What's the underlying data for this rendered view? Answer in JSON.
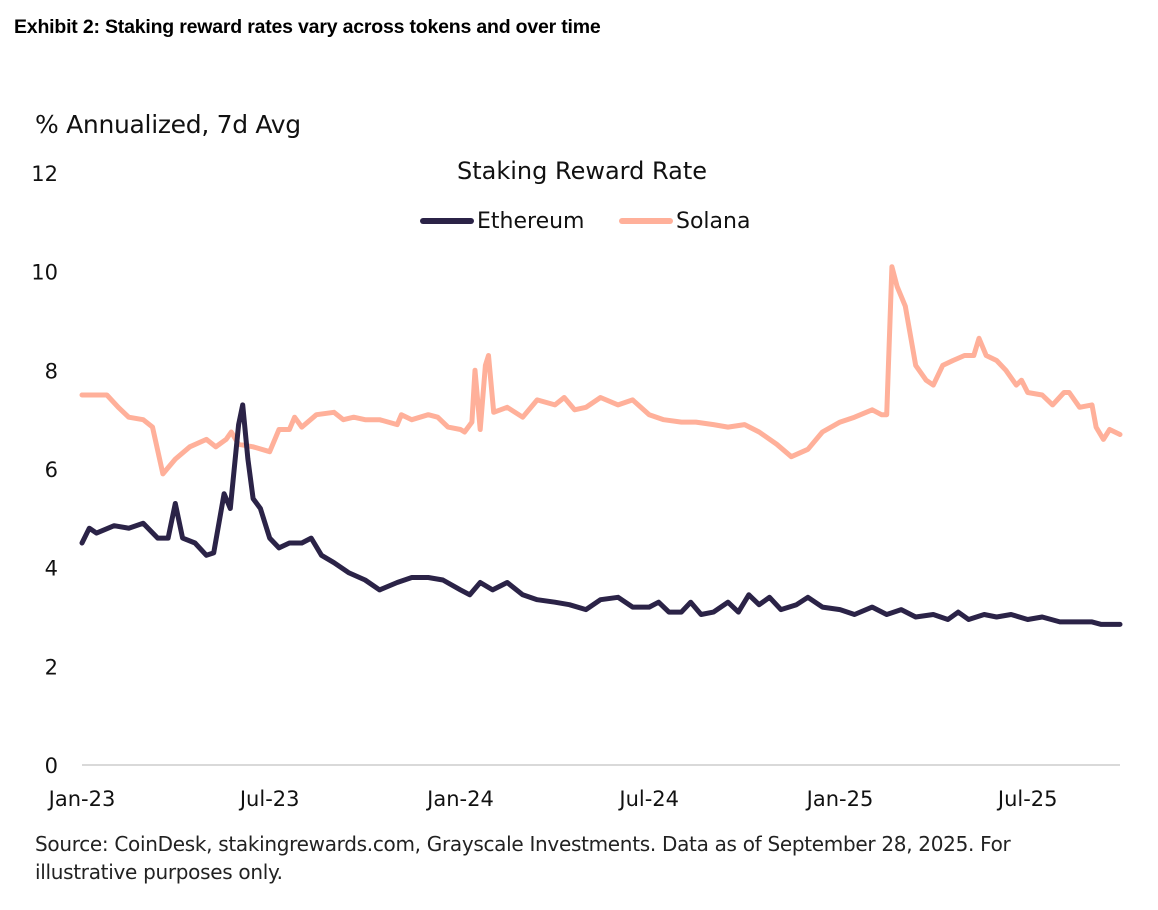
{
  "exhibit_title": "Exhibit 2: Staking reward rates vary across tokens and over time",
  "unit_label": "% Annualized, 7d Avg",
  "source_note": "Source: CoinDesk, stakingrewards.com, Grayscale Investments. Data as of September 28, 2025. For illustrative purposes only.",
  "chart_data": {
    "type": "line",
    "title": "Staking Reward Rate",
    "xlabel": "",
    "ylabel": "% Annualized, 7d Avg",
    "ylim": [
      0,
      12
    ],
    "yticks": [
      0,
      2,
      4,
      6,
      8,
      10,
      12
    ],
    "xlim": [
      "2023-01-01",
      "2025-09-28"
    ],
    "xticks": [
      {
        "date": "2023-01-01",
        "label": "Jan-23"
      },
      {
        "date": "2023-07-01",
        "label": "Jul-23"
      },
      {
        "date": "2024-01-01",
        "label": "Jan-24"
      },
      {
        "date": "2024-07-01",
        "label": "Jul-24"
      },
      {
        "date": "2025-01-01",
        "label": "Jan-25"
      },
      {
        "date": "2025-07-01",
        "label": "Jul-25"
      }
    ],
    "grid": false,
    "baseline_at_zero": true,
    "legend_position": "top-center",
    "series": [
      {
        "name": "Ethereum",
        "color": "#2b2347",
        "points": [
          [
            "2023-01-01",
            4.5
          ],
          [
            "2023-01-08",
            4.8
          ],
          [
            "2023-01-15",
            4.7
          ],
          [
            "2023-02-01",
            4.85
          ],
          [
            "2023-02-15",
            4.8
          ],
          [
            "2023-03-01",
            4.9
          ],
          [
            "2023-03-15",
            4.6
          ],
          [
            "2023-03-25",
            4.6
          ],
          [
            "2023-04-01",
            5.3
          ],
          [
            "2023-04-08",
            4.6
          ],
          [
            "2023-04-20",
            4.5
          ],
          [
            "2023-05-01",
            4.25
          ],
          [
            "2023-05-08",
            4.3
          ],
          [
            "2023-05-18",
            5.5
          ],
          [
            "2023-05-24",
            5.2
          ],
          [
            "2023-06-01",
            6.9
          ],
          [
            "2023-06-05",
            7.3
          ],
          [
            "2023-06-10",
            6.2
          ],
          [
            "2023-06-15",
            5.4
          ],
          [
            "2023-06-22",
            5.2
          ],
          [
            "2023-07-01",
            4.6
          ],
          [
            "2023-07-10",
            4.4
          ],
          [
            "2023-07-20",
            4.5
          ],
          [
            "2023-08-01",
            4.5
          ],
          [
            "2023-08-10",
            4.6
          ],
          [
            "2023-08-20",
            4.25
          ],
          [
            "2023-09-01",
            4.1
          ],
          [
            "2023-09-15",
            3.9
          ],
          [
            "2023-10-01",
            3.75
          ],
          [
            "2023-10-15",
            3.55
          ],
          [
            "2023-11-01",
            3.7
          ],
          [
            "2023-11-15",
            3.8
          ],
          [
            "2023-12-01",
            3.8
          ],
          [
            "2023-12-15",
            3.75
          ],
          [
            "2024-01-01",
            3.55
          ],
          [
            "2024-01-10",
            3.45
          ],
          [
            "2024-01-20",
            3.7
          ],
          [
            "2024-02-01",
            3.55
          ],
          [
            "2024-02-15",
            3.7
          ],
          [
            "2024-03-01",
            3.45
          ],
          [
            "2024-03-15",
            3.35
          ],
          [
            "2024-04-01",
            3.3
          ],
          [
            "2024-04-15",
            3.25
          ],
          [
            "2024-05-01",
            3.15
          ],
          [
            "2024-05-15",
            3.35
          ],
          [
            "2024-06-01",
            3.4
          ],
          [
            "2024-06-15",
            3.2
          ],
          [
            "2024-07-01",
            3.2
          ],
          [
            "2024-07-10",
            3.3
          ],
          [
            "2024-07-20",
            3.1
          ],
          [
            "2024-08-01",
            3.1
          ],
          [
            "2024-08-10",
            3.3
          ],
          [
            "2024-08-20",
            3.05
          ],
          [
            "2024-09-01",
            3.1
          ],
          [
            "2024-09-15",
            3.3
          ],
          [
            "2024-09-25",
            3.1
          ],
          [
            "2024-10-05",
            3.45
          ],
          [
            "2024-10-15",
            3.25
          ],
          [
            "2024-10-25",
            3.4
          ],
          [
            "2024-11-05",
            3.15
          ],
          [
            "2024-11-20",
            3.25
          ],
          [
            "2024-12-01",
            3.4
          ],
          [
            "2024-12-15",
            3.2
          ],
          [
            "2025-01-01",
            3.15
          ],
          [
            "2025-01-15",
            3.05
          ],
          [
            "2025-02-01",
            3.2
          ],
          [
            "2025-02-15",
            3.05
          ],
          [
            "2025-03-01",
            3.15
          ],
          [
            "2025-03-15",
            3.0
          ],
          [
            "2025-04-01",
            3.05
          ],
          [
            "2025-04-15",
            2.95
          ],
          [
            "2025-04-25",
            3.1
          ],
          [
            "2025-05-05",
            2.95
          ],
          [
            "2025-05-20",
            3.05
          ],
          [
            "2025-06-01",
            3.0
          ],
          [
            "2025-06-15",
            3.05
          ],
          [
            "2025-07-01",
            2.95
          ],
          [
            "2025-07-15",
            3.0
          ],
          [
            "2025-08-01",
            2.9
          ],
          [
            "2025-08-15",
            2.9
          ],
          [
            "2025-09-01",
            2.9
          ],
          [
            "2025-09-10",
            2.85
          ],
          [
            "2025-09-28",
            2.85
          ]
        ]
      },
      {
        "name": "Solana",
        "color": "#ffb09a",
        "points": [
          [
            "2023-01-01",
            7.5
          ],
          [
            "2023-01-25",
            7.5
          ],
          [
            "2023-02-05",
            7.25
          ],
          [
            "2023-02-15",
            7.05
          ],
          [
            "2023-03-01",
            7.0
          ],
          [
            "2023-03-10",
            6.85
          ],
          [
            "2023-03-20",
            5.9
          ],
          [
            "2023-04-01",
            6.2
          ],
          [
            "2023-04-15",
            6.45
          ],
          [
            "2023-05-01",
            6.6
          ],
          [
            "2023-05-10",
            6.45
          ],
          [
            "2023-05-20",
            6.6
          ],
          [
            "2023-05-25",
            6.75
          ],
          [
            "2023-06-01",
            6.5
          ],
          [
            "2023-06-15",
            6.45
          ],
          [
            "2023-07-01",
            6.35
          ],
          [
            "2023-07-10",
            6.8
          ],
          [
            "2023-07-20",
            6.8
          ],
          [
            "2023-07-25",
            7.05
          ],
          [
            "2023-08-01",
            6.85
          ],
          [
            "2023-08-15",
            7.1
          ],
          [
            "2023-09-01",
            7.15
          ],
          [
            "2023-09-10",
            7.0
          ],
          [
            "2023-09-20",
            7.05
          ],
          [
            "2023-10-01",
            7.0
          ],
          [
            "2023-10-15",
            7.0
          ],
          [
            "2023-11-01",
            6.9
          ],
          [
            "2023-11-05",
            7.1
          ],
          [
            "2023-11-15",
            7.0
          ],
          [
            "2023-12-01",
            7.1
          ],
          [
            "2023-12-10",
            7.05
          ],
          [
            "2023-12-20",
            6.85
          ],
          [
            "2024-01-01",
            6.8
          ],
          [
            "2024-01-05",
            6.75
          ],
          [
            "2024-01-12",
            6.95
          ],
          [
            "2024-01-15",
            8.0
          ],
          [
            "2024-01-20",
            6.8
          ],
          [
            "2024-01-25",
            8.1
          ],
          [
            "2024-01-28",
            8.3
          ],
          [
            "2024-02-02",
            7.15
          ],
          [
            "2024-02-15",
            7.25
          ],
          [
            "2024-03-01",
            7.05
          ],
          [
            "2024-03-15",
            7.4
          ],
          [
            "2024-04-01",
            7.3
          ],
          [
            "2024-04-10",
            7.45
          ],
          [
            "2024-04-20",
            7.2
          ],
          [
            "2024-05-01",
            7.25
          ],
          [
            "2024-05-15",
            7.45
          ],
          [
            "2024-06-01",
            7.3
          ],
          [
            "2024-06-15",
            7.4
          ],
          [
            "2024-07-01",
            7.1
          ],
          [
            "2024-07-15",
            7.0
          ],
          [
            "2024-08-01",
            6.95
          ],
          [
            "2024-08-15",
            6.95
          ],
          [
            "2024-09-01",
            6.9
          ],
          [
            "2024-09-15",
            6.85
          ],
          [
            "2024-10-01",
            6.9
          ],
          [
            "2024-10-15",
            6.75
          ],
          [
            "2024-11-01",
            6.5
          ],
          [
            "2024-11-15",
            6.25
          ],
          [
            "2024-12-01",
            6.4
          ],
          [
            "2024-12-15",
            6.75
          ],
          [
            "2025-01-01",
            6.95
          ],
          [
            "2025-01-15",
            7.05
          ],
          [
            "2025-02-01",
            7.2
          ],
          [
            "2025-02-10",
            7.1
          ],
          [
            "2025-02-15",
            7.1
          ],
          [
            "2025-02-20",
            10.1
          ],
          [
            "2025-02-25",
            9.7
          ],
          [
            "2025-03-05",
            9.3
          ],
          [
            "2025-03-15",
            8.1
          ],
          [
            "2025-03-25",
            7.8
          ],
          [
            "2025-04-01",
            7.7
          ],
          [
            "2025-04-10",
            8.1
          ],
          [
            "2025-04-20",
            8.2
          ],
          [
            "2025-05-01",
            8.3
          ],
          [
            "2025-05-10",
            8.3
          ],
          [
            "2025-05-15",
            8.65
          ],
          [
            "2025-05-22",
            8.3
          ],
          [
            "2025-06-01",
            8.2
          ],
          [
            "2025-06-10",
            8.0
          ],
          [
            "2025-06-20",
            7.7
          ],
          [
            "2025-06-25",
            7.8
          ],
          [
            "2025-07-01",
            7.55
          ],
          [
            "2025-07-15",
            7.5
          ],
          [
            "2025-07-25",
            7.3
          ],
          [
            "2025-08-05",
            7.55
          ],
          [
            "2025-08-10",
            7.55
          ],
          [
            "2025-08-20",
            7.25
          ],
          [
            "2025-09-01",
            7.3
          ],
          [
            "2025-09-05",
            6.85
          ],
          [
            "2025-09-12",
            6.6
          ],
          [
            "2025-09-18",
            6.8
          ],
          [
            "2025-09-28",
            6.7
          ]
        ]
      }
    ]
  }
}
